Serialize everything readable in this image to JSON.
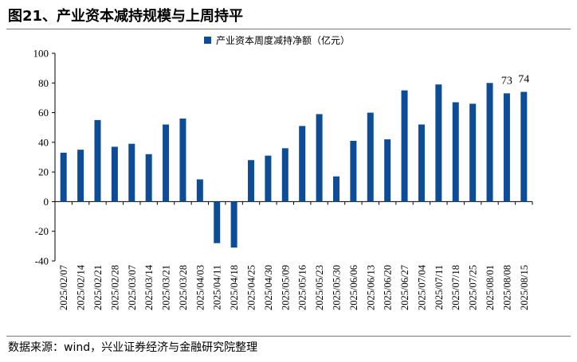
{
  "title": "图21、产业资本减持规模与上周持平",
  "source": "数据来源：wind，兴业证券经济与金融研究院整理",
  "chart_data": {
    "type": "bar",
    "title": "",
    "legend": [
      "产业资本周度减持净额（亿元）"
    ],
    "legend_position": "top-center",
    "xlabel": "",
    "ylabel": "",
    "ylim": [
      -40,
      100
    ],
    "yticks": [
      -40,
      -20,
      0,
      20,
      40,
      60,
      80,
      100
    ],
    "ytick_labels": [
      "-40",
      "-20",
      "0",
      "20",
      "40",
      "60",
      "80",
      "100"
    ],
    "grid": false,
    "bar_color": "#0d4d96",
    "categories": [
      "2025/02/07",
      "2025/02/14",
      "2025/02/21",
      "2025/02/28",
      "2025/03/07",
      "2025/03/14",
      "2025/03/21",
      "2025/03/28",
      "2025/04/03",
      "2025/04/11",
      "2025/04/18",
      "2025/04/25",
      "2025/04/30",
      "2025/05/09",
      "2025/05/16",
      "2025/05/23",
      "2025/05/30",
      "2025/06/06",
      "2025/06/13",
      "2025/06/20",
      "2025/06/27",
      "2025/07/04",
      "2025/07/11",
      "2025/07/18",
      "2025/07/25",
      "2025/08/01",
      "2025/08/08",
      "2025/08/15"
    ],
    "series": [
      {
        "name": "产业资本周度减持净额（亿元）",
        "values": [
          33,
          35,
          55,
          37,
          39,
          32,
          52,
          56,
          15,
          -28,
          -31,
          28,
          31,
          36,
          51,
          59,
          17,
          41,
          60,
          42,
          75,
          52,
          79,
          67,
          66,
          80,
          73,
          74
        ]
      }
    ],
    "annotations": [
      {
        "category": "2025/08/08",
        "label": "73"
      },
      {
        "category": "2025/08/15",
        "label": "74"
      }
    ]
  }
}
